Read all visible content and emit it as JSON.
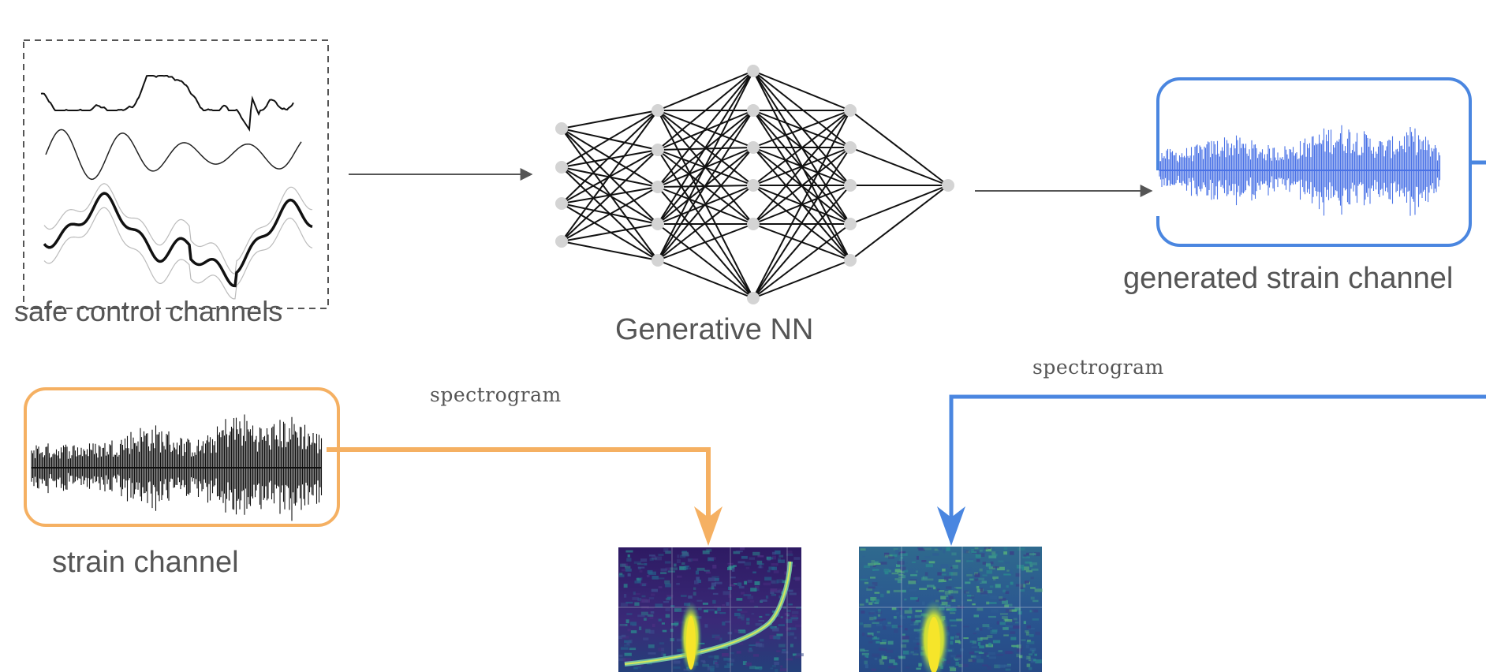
{
  "labels": {
    "safe_control_channels": "safe control channels",
    "generative_nn": "Generative NN",
    "generated_strain_channel": "generated strain channel",
    "strain_channel": "strain channel",
    "spectrogram_left": "spectrogram",
    "spectrogram_right": "spectrogram"
  },
  "colors": {
    "orange_accent": "#f5b062",
    "blue_accent": "#4a86e0",
    "arrow_gray": "#555555",
    "spectrogram_dark": "#3b1c6e",
    "spectrogram_yellow": "#f6e52a",
    "spectrogram_teal": "#2a8a8e"
  },
  "network": {
    "layer_sizes": [
      4,
      5,
      6,
      5,
      1
    ]
  }
}
